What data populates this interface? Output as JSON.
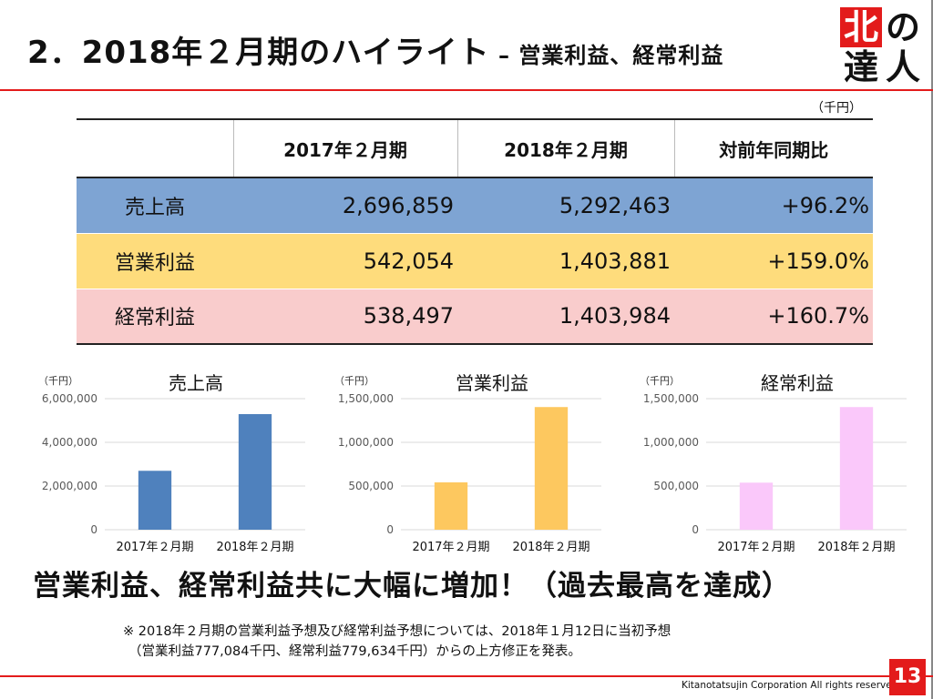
{
  "slide": {
    "title_main": "2．2018年２月期のハイライト",
    "title_sub": " – 営業利益、経常利益",
    "logo": [
      "北",
      "の",
      "達",
      "人"
    ],
    "unit": "（千円）",
    "headline": "営業利益、経常利益共に大幅に増加！（過去最高を達成）",
    "note_lines": [
      "※ 2018年２月期の営業利益予想及び経常利益予想については、2018年１月12日に当初予想",
      "（営業利益777,084千円、経常利益779,634千円）からの上方修正を発表。"
    ],
    "copyright": "Kitanotatsujin Corporation All rights reserved",
    "page_number": "13"
  },
  "table": {
    "headers": [
      "",
      "2017年２月期",
      "2018年２月期",
      "対前年同期比"
    ],
    "rows": [
      {
        "label": "売上高",
        "v2017": "2,696,859",
        "v2018": "5,292,463",
        "yoy": "+96.2%"
      },
      {
        "label": "営業利益",
        "v2017": "542,054",
        "v2018": "1,403,881",
        "yoy": "+159.0%"
      },
      {
        "label": "経常利益",
        "v2017": "538,497",
        "v2018": "1,403,984",
        "yoy": "+160.7%"
      }
    ]
  },
  "chart_data": [
    {
      "type": "bar",
      "title": "売上高",
      "unit_label": "（千円）",
      "categories": [
        "2017年２月期",
        "2018年２月期"
      ],
      "values": [
        2696859,
        5292463
      ],
      "ylim": [
        0,
        6000000
      ],
      "yticks": [
        0,
        2000000,
        4000000,
        6000000
      ],
      "ytick_labels": [
        "0",
        "2,000,000",
        "4,000,000",
        "6,000,000"
      ],
      "color": "#4f81bd",
      "grid": true,
      "legend": "none"
    },
    {
      "type": "bar",
      "title": "営業利益",
      "unit_label": "（千円）",
      "categories": [
        "2017年２月期",
        "2018年２月期"
      ],
      "values": [
        542054,
        1403881
      ],
      "ylim": [
        0,
        1500000
      ],
      "yticks": [
        0,
        500000,
        1000000,
        1500000
      ],
      "ytick_labels": [
        "0",
        "500,000",
        "1,000,000",
        "1,500,000"
      ],
      "color": "#fdc85f",
      "grid": true,
      "legend": "none"
    },
    {
      "type": "bar",
      "title": "経常利益",
      "unit_label": "（千円）",
      "categories": [
        "2017年２月期",
        "2018年２月期"
      ],
      "values": [
        538497,
        1403984
      ],
      "ylim": [
        0,
        1500000
      ],
      "yticks": [
        0,
        500000,
        1000000,
        1500000
      ],
      "ytick_labels": [
        "0",
        "500,000",
        "1,000,000",
        "1,500,000"
      ],
      "color": "#fac8fa",
      "grid": true,
      "legend": "none"
    }
  ]
}
